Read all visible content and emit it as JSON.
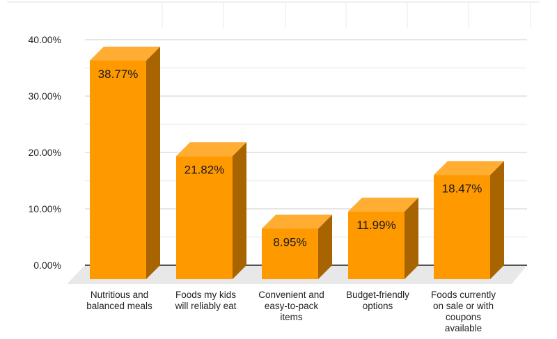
{
  "chart_data": {
    "type": "bar",
    "title": "",
    "xlabel": "",
    "ylabel": "",
    "ylim": [
      0,
      40
    ],
    "yticks": [
      "0.00%",
      "10.00%",
      "20.00%",
      "30.00%",
      "40.00%"
    ],
    "categories": [
      [
        "Nutritious and",
        "balanced meals"
      ],
      [
        "Foods my kids",
        "will reliably eat"
      ],
      [
        "Convenient and",
        "easy-to-pack",
        "items"
      ],
      [
        "Budget-friendly",
        "options"
      ],
      [
        "Foods currently",
        "on sale or with",
        "coupons",
        "available"
      ]
    ],
    "values": [
      38.77,
      21.82,
      8.95,
      11.99,
      18.47
    ],
    "data_labels": [
      "38.77%",
      "21.82%",
      "8.95%",
      "11.99%",
      "18.47%"
    ],
    "grid": true,
    "style": "3d-bar",
    "colors": {
      "front": "#ff9900",
      "top": "#ffad33",
      "side": "#a86400",
      "floor": "#e8e8e8",
      "grid": "#e6e6e6",
      "axis": "#555555"
    }
  }
}
